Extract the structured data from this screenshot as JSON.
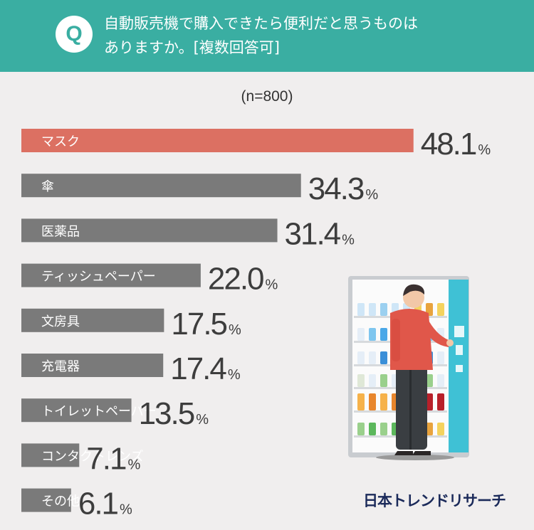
{
  "header": {
    "badge": "Q",
    "question_line1": "自動販売機で購入できたら便利だと思うものは",
    "question_line2": "ありますか。[複数回答可]"
  },
  "sample_label": "(n=800)",
  "brand": "日本トレンドリサーチ",
  "colors": {
    "header_bg": "#3aaea2",
    "highlight_bar": "#dc7062",
    "bar": "#7a7a7a",
    "background": "#f0eeee"
  },
  "chart_data": {
    "type": "bar",
    "orientation": "horizontal",
    "unit": "%",
    "categories": [
      "マスク",
      "傘",
      "医薬品",
      "ティッシュペーパー",
      "文房具",
      "充電器",
      "トイレットペーパー",
      "コンタクトレンズ",
      "その他"
    ],
    "values": [
      48.1,
      34.3,
      31.4,
      22.0,
      17.5,
      17.4,
      13.5,
      7.1,
      6.1
    ],
    "value_labels": [
      "48.1",
      "34.3",
      "31.4",
      "22.0",
      "17.5",
      "17.4",
      "13.5",
      "7.1",
      "6.1"
    ],
    "highlight_index": 0,
    "grid": false
  }
}
